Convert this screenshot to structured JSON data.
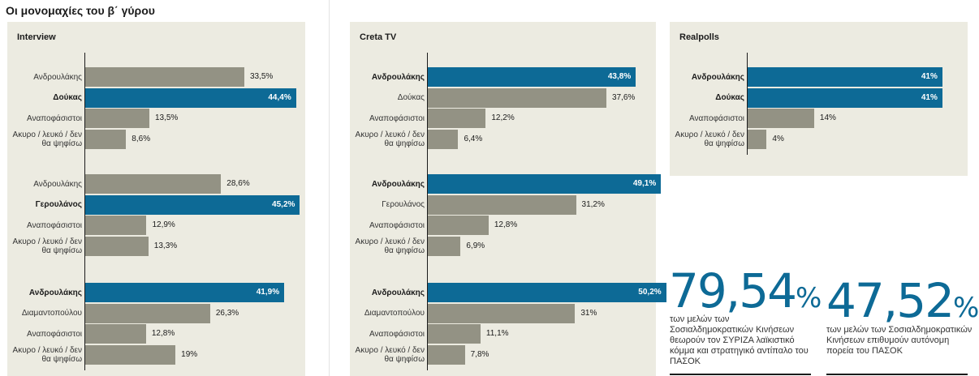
{
  "title": "Οι μονομαχίες του β΄ γύρου",
  "chart_data": [
    {
      "type": "bar",
      "title": "Interview",
      "groups": [
        {
          "rows": [
            {
              "label": "Ανδρουλάκης",
              "value": 33.5,
              "text": "33,5%",
              "highlight": false
            },
            {
              "label": "Δούκας",
              "value": 44.4,
              "text": "44,4%",
              "highlight": true
            },
            {
              "label": "Αναποφάσιστοι",
              "value": 13.5,
              "text": "13,5%",
              "highlight": false
            },
            {
              "label": "Ακυρο / λευκό / δεν θα ψηφίσω",
              "value": 8.6,
              "text": "8,6%",
              "highlight": false
            }
          ]
        },
        {
          "rows": [
            {
              "label": "Ανδρουλάκης",
              "value": 28.6,
              "text": "28,6%",
              "highlight": false
            },
            {
              "label": "Γερουλάνος",
              "value": 45.2,
              "text": "45,2%",
              "highlight": true
            },
            {
              "label": "Αναποφάσιστοι",
              "value": 12.9,
              "text": "12,9%",
              "highlight": false
            },
            {
              "label": "Ακυρο / λευκό / δεν θα ψηφίσω",
              "value": 13.3,
              "text": "13,3%",
              "highlight": false
            }
          ]
        },
        {
          "rows": [
            {
              "label": "Ανδρουλάκης",
              "value": 41.9,
              "text": "41,9%",
              "highlight": true
            },
            {
              "label": "Διαμαντοπούλου",
              "value": 26.3,
              "text": "26,3%",
              "highlight": false
            },
            {
              "label": "Αναποφάσιστοι",
              "value": 12.8,
              "text": "12,8%",
              "highlight": false
            },
            {
              "label": "Ακυρο / λευκό / δεν θα ψηφίσω",
              "value": 19,
              "text": "19%",
              "highlight": false
            }
          ]
        }
      ]
    },
    {
      "type": "bar",
      "title": "Creta TV",
      "groups": [
        {
          "rows": [
            {
              "label": "Ανδρουλάκης",
              "value": 43.8,
              "text": "43,8%",
              "highlight": true
            },
            {
              "label": "Δούκας",
              "value": 37.6,
              "text": "37,6%",
              "highlight": false
            },
            {
              "label": "Αναποφάσιστοι",
              "value": 12.2,
              "text": "12,2%",
              "highlight": false
            },
            {
              "label": "Ακυρο / λευκό / δεν θα ψηφίσω",
              "value": 6.4,
              "text": "6,4%",
              "highlight": false
            }
          ]
        },
        {
          "rows": [
            {
              "label": "Ανδρουλάκης",
              "value": 49.1,
              "text": "49,1%",
              "highlight": true
            },
            {
              "label": "Γερουλάνος",
              "value": 31.2,
              "text": "31,2%",
              "highlight": false
            },
            {
              "label": "Αναποφάσιστοι",
              "value": 12.8,
              "text": "12,8%",
              "highlight": false
            },
            {
              "label": "Ακυρο / λευκό / δεν θα ψηφίσω",
              "value": 6.9,
              "text": "6,9%",
              "highlight": false
            }
          ]
        },
        {
          "rows": [
            {
              "label": "Ανδρουλάκης",
              "value": 50.2,
              "text": "50,2%",
              "highlight": true
            },
            {
              "label": "Διαμαντοπούλου",
              "value": 31,
              "text": "31%",
              "highlight": false
            },
            {
              "label": "Αναποφάσιστοι",
              "value": 11.1,
              "text": "11,1%",
              "highlight": false
            },
            {
              "label": "Ακυρο / λευκό / δεν θα ψηφίσω",
              "value": 7.8,
              "text": "7,8%",
              "highlight": false
            }
          ]
        }
      ]
    },
    {
      "type": "bar",
      "title": "Realpolls",
      "groups": [
        {
          "rows": [
            {
              "label": "Ανδρουλάκης",
              "value": 41,
              "text": "41%",
              "highlight": true
            },
            {
              "label": "Δούκας",
              "value": 41,
              "text": "41%",
              "highlight": true
            },
            {
              "label": "Αναποφάσιστοι",
              "value": 14,
              "text": "14%",
              "highlight": false
            },
            {
              "label": "Ακυρο / λευκό / δεν θα ψηφίσω",
              "value": 4,
              "text": "4%",
              "highlight": false
            }
          ]
        }
      ]
    }
  ],
  "stats": [
    {
      "number": "79,54",
      "unit": "%",
      "description": "των μελών των Σοσιαλδημοκρατικών Κινήσεων θεωρούν τον ΣΥΡΙΖΑ λαϊκιστικό κόμμα και στρατηγικό αντίπαλο του ΠΑΣΟΚ"
    },
    {
      "number": "47,52",
      "unit": "%",
      "description": "των μελών των Σοσιαλδημοκρατικών Κινήσεων επιθυμούν αυτόνομη πορεία του ΠΑΣΟΚ"
    }
  ],
  "colors": {
    "highlight": "#0d6a96",
    "default": "#939284",
    "panel": "#ecebe1"
  }
}
